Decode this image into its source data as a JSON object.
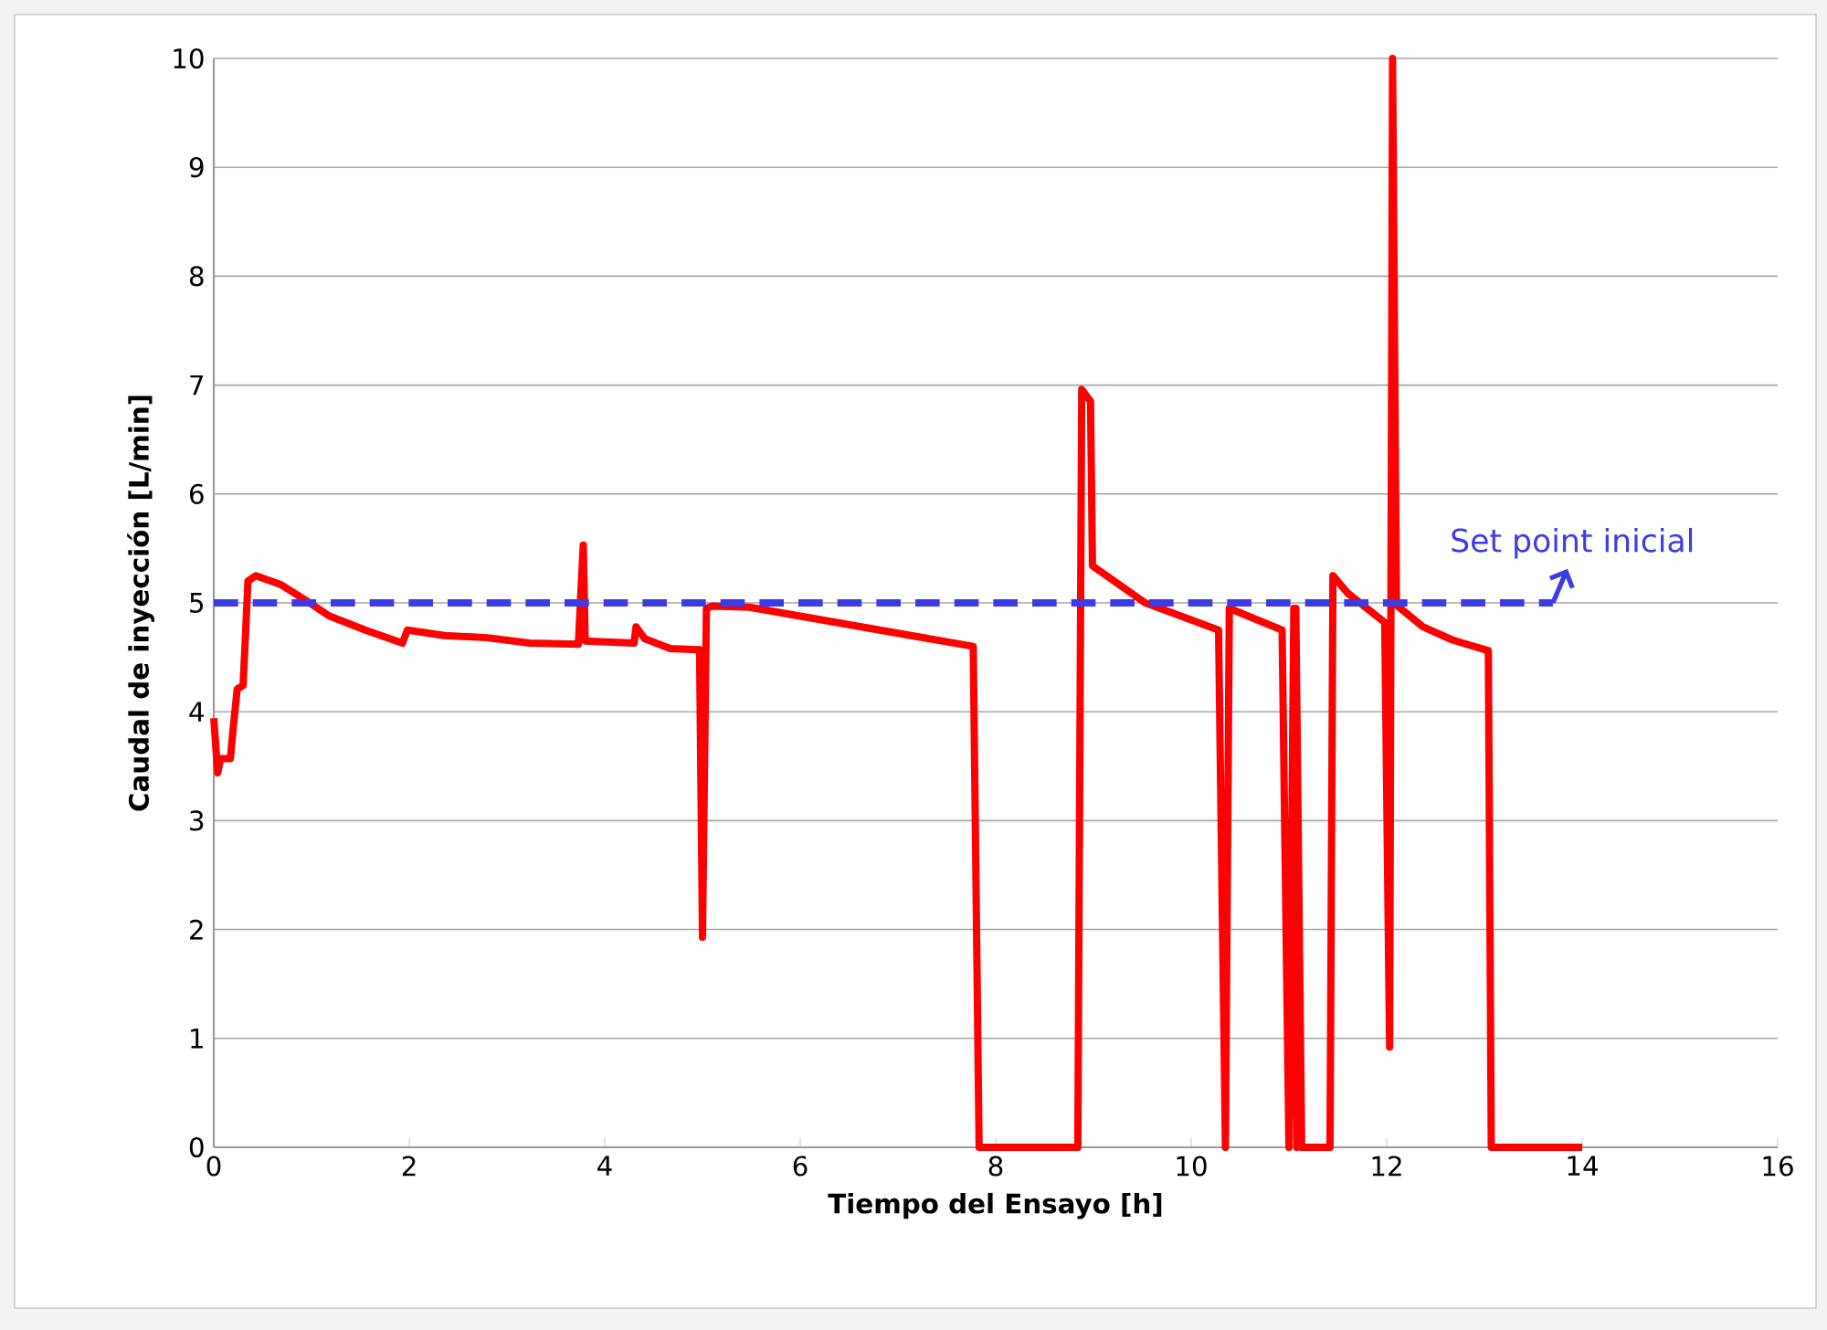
{
  "chart_data": {
    "type": "line",
    "xlabel": "Tiempo del Ensayo [h]",
    "ylabel": "Caudal de inyección [L/min]",
    "xlim": [
      0,
      16
    ],
    "xticks": [
      0,
      2,
      4,
      6,
      8,
      10,
      12,
      14,
      16
    ],
    "ylim": [
      0,
      10
    ],
    "yticks": [
      0,
      1,
      2,
      3,
      4,
      5,
      6,
      7,
      8,
      9,
      10
    ],
    "grid": "y",
    "series": [
      {
        "color": "#ff0000",
        "line_style": "solid",
        "x": [
          0,
          0.04,
          0.07,
          0.17,
          0.2,
          0.24,
          0.3,
          0.35,
          0.43,
          0.68,
          0.93,
          1.18,
          1.55,
          1.93,
          1.98,
          2.36,
          2.8,
          3.23,
          3.73,
          3.78,
          3.8,
          4.3,
          4.32,
          4.41,
          4.67,
          4.97,
          5.0,
          5.04,
          5.1,
          5.48,
          7.77,
          7.83,
          8.84,
          8.88,
          8.97,
          8.99,
          9.53,
          10.28,
          10.35,
          10.39,
          10.93,
          11.0,
          11.05,
          11.08,
          11.07,
          11.13,
          11.42,
          11.45,
          11.6,
          11.98,
          12.03,
          12.06,
          12.1,
          12.37,
          12.67,
          13.04,
          13.07,
          14.0
        ],
        "values": [
          3.94,
          3.44,
          3.57,
          3.57,
          3.86,
          4.21,
          4.24,
          5.2,
          5.25,
          5.17,
          5.03,
          4.88,
          4.75,
          4.63,
          4.75,
          4.7,
          4.68,
          4.63,
          4.62,
          5.53,
          4.65,
          4.63,
          4.78,
          4.67,
          4.58,
          4.57,
          1.93,
          4.95,
          4.97,
          4.96,
          4.6,
          0,
          0,
          6.96,
          6.85,
          5.34,
          5.0,
          4.75,
          0,
          4.95,
          4.75,
          0,
          4.95,
          0,
          4.95,
          0,
          0,
          5.25,
          5.09,
          4.82,
          0.92,
          10,
          4.98,
          4.78,
          4.66,
          4.56,
          0,
          0
        ]
      },
      {
        "color": "#3c3ce6",
        "line_style": "dashed",
        "x": [
          0,
          13.7
        ],
        "values": [
          5,
          5
        ]
      }
    ],
    "annotations": [
      {
        "text": "Set point inicial",
        "x": 13.7,
        "y": 5
      }
    ]
  }
}
